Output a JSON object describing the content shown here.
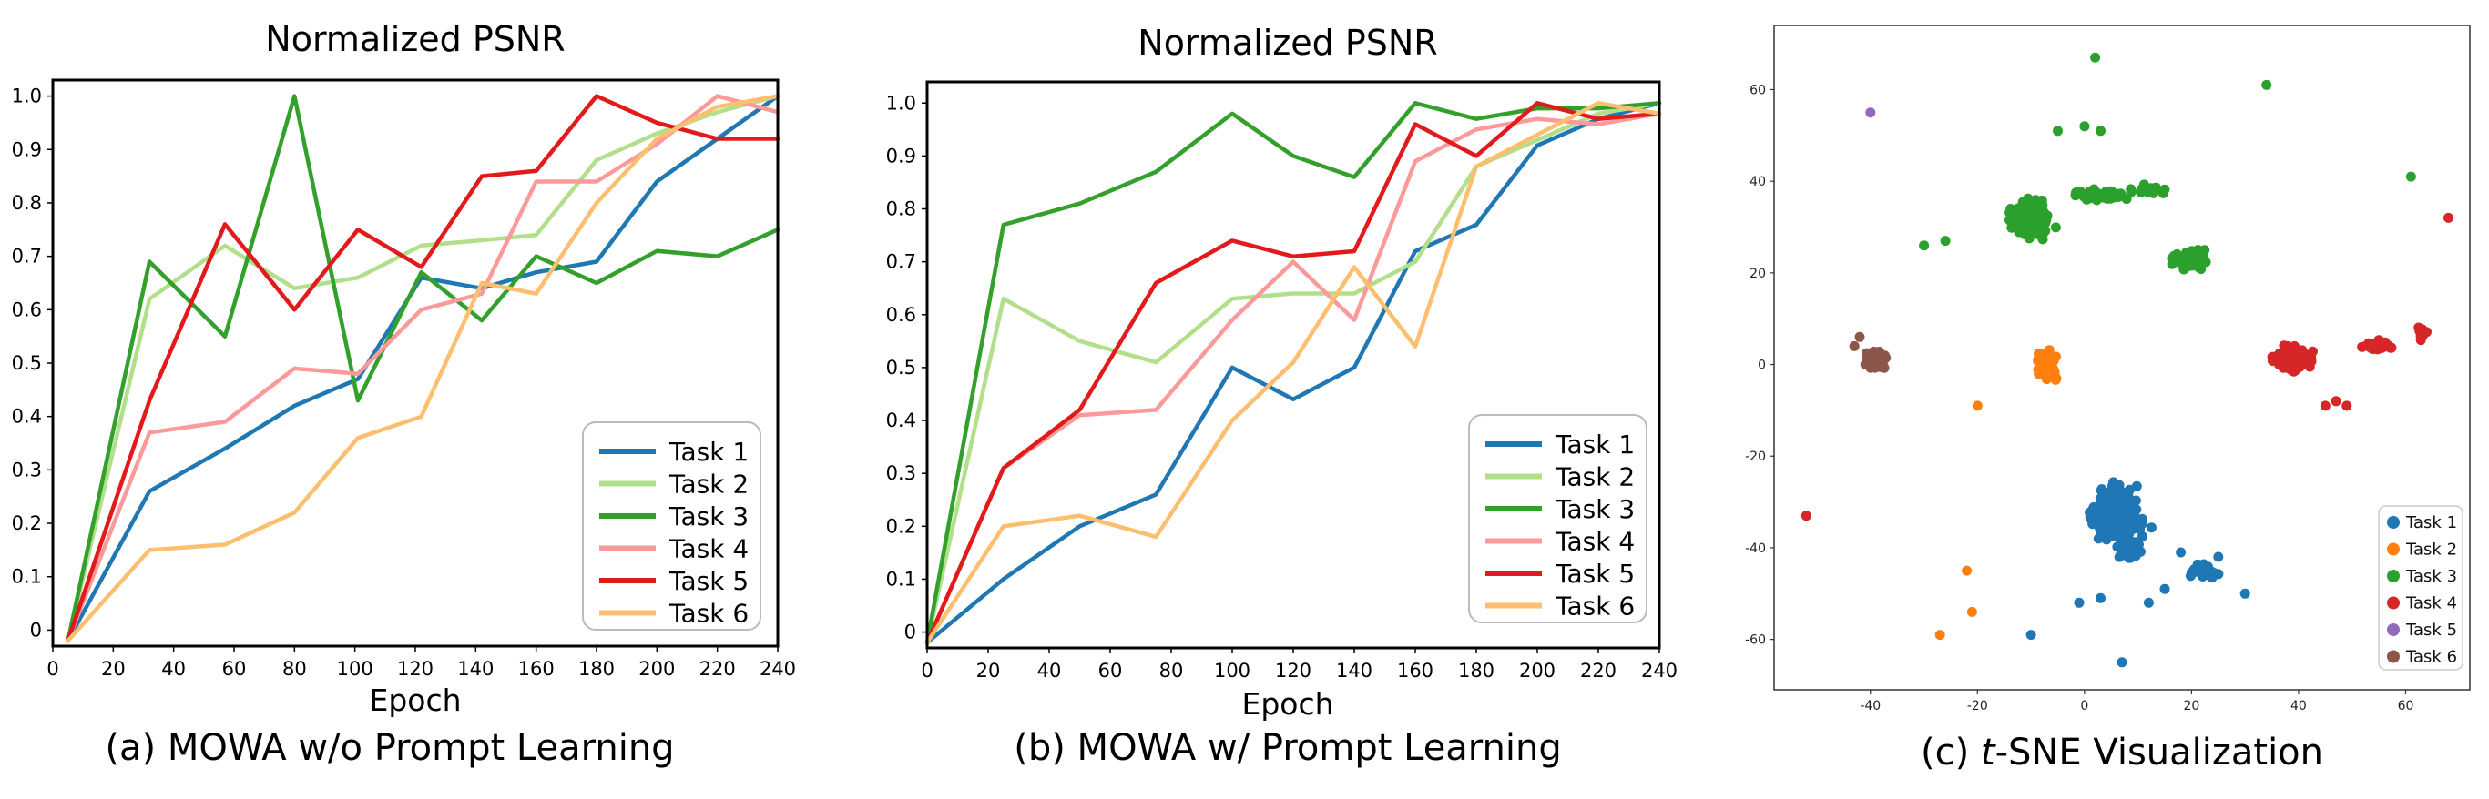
{
  "colors": {
    "task1": "#1f77b4",
    "task2": "#b2df8a",
    "task3": "#33a02c",
    "task4": "#fb9a99",
    "task5": "#e31a1c",
    "task6": "#fdbf6f",
    "tsne_task1": "#1f77b4",
    "tsne_task2": "#ff7f0e",
    "tsne_task3": "#2ca02c",
    "tsne_task4": "#d62728",
    "tsne_task5": "#9467bd",
    "tsne_task6": "#8c564b"
  },
  "chart_data": [
    {
      "type": "line",
      "title": "Normalized PSNR",
      "xlabel": "Epoch",
      "ylabel": "",
      "caption": "(a) MOWA w/o Prompt Learning",
      "xlim": [
        0,
        240
      ],
      "ylim": [
        -0.03,
        1.03
      ],
      "xticks": [
        "0",
        "20",
        "40",
        "60",
        "80",
        "100",
        "120",
        "140",
        "160",
        "180",
        "200",
        "220",
        "240"
      ],
      "yticks": [
        "0",
        "0.1",
        "0.2",
        "0.3",
        "0.4",
        "0.5",
        "0.6",
        "0.7",
        "0.8",
        "0.9",
        "1.0"
      ],
      "legend_position": "bottom-right",
      "x": [
        5,
        32,
        57,
        80,
        101,
        122,
        142,
        160,
        180,
        200,
        220,
        240
      ],
      "series": [
        {
          "name": "Task 1",
          "values": [
            -0.02,
            0.26,
            0.34,
            0.42,
            0.47,
            0.66,
            0.64,
            0.67,
            0.69,
            0.84,
            0.92,
            1.0
          ]
        },
        {
          "name": "Task 2",
          "values": [
            -0.02,
            0.62,
            0.72,
            0.64,
            0.66,
            0.72,
            0.73,
            0.74,
            0.88,
            0.93,
            0.97,
            1.0
          ]
        },
        {
          "name": "Task 3",
          "values": [
            -0.02,
            0.69,
            0.55,
            1.0,
            0.43,
            0.67,
            0.58,
            0.7,
            0.65,
            0.71,
            0.7,
            0.75
          ]
        },
        {
          "name": "Task 4",
          "values": [
            -0.02,
            0.37,
            0.39,
            0.49,
            0.48,
            0.6,
            0.63,
            0.84,
            0.84,
            0.91,
            1.0,
            0.97
          ]
        },
        {
          "name": "Task 5",
          "values": [
            -0.02,
            0.43,
            0.76,
            0.6,
            0.75,
            0.68,
            0.85,
            0.86,
            1.0,
            0.95,
            0.92,
            0.92
          ]
        },
        {
          "name": "Task 6",
          "values": [
            -0.02,
            0.15,
            0.16,
            0.22,
            0.36,
            0.4,
            0.65,
            0.63,
            0.8,
            0.92,
            0.98,
            1.0
          ]
        }
      ]
    },
    {
      "type": "line",
      "title": "Normalized PSNR",
      "xlabel": "Epoch",
      "ylabel": "",
      "caption": "(b) MOWA w/ Prompt Learning",
      "xlim": [
        0,
        240
      ],
      "ylim": [
        -0.03,
        1.04
      ],
      "xticks": [
        "0",
        "20",
        "40",
        "60",
        "80",
        "100",
        "120",
        "140",
        "160",
        "180",
        "200",
        "220",
        "240"
      ],
      "yticks": [
        "0",
        "0.1",
        "0.2",
        "0.3",
        "0.4",
        "0.5",
        "0.6",
        "0.7",
        "0.8",
        "0.9",
        "1.0"
      ],
      "legend_position": "bottom-right",
      "x": [
        0,
        25,
        50,
        75,
        100,
        120,
        140,
        160,
        180,
        200,
        220,
        240
      ],
      "series": [
        {
          "name": "Task 1",
          "values": [
            -0.02,
            0.1,
            0.2,
            0.26,
            0.5,
            0.44,
            0.5,
            0.72,
            0.77,
            0.92,
            0.97,
            1.0
          ]
        },
        {
          "name": "Task 2",
          "values": [
            -0.02,
            0.63,
            0.55,
            0.51,
            0.63,
            0.64,
            0.64,
            0.7,
            0.88,
            0.93,
            0.98,
            1.0
          ]
        },
        {
          "name": "Task 3",
          "values": [
            -0.02,
            0.77,
            0.81,
            0.87,
            0.98,
            0.9,
            0.86,
            1.0,
            0.97,
            0.99,
            0.99,
            1.0
          ]
        },
        {
          "name": "Task 4",
          "values": [
            -0.02,
            0.31,
            0.41,
            0.42,
            0.59,
            0.7,
            0.59,
            0.89,
            0.95,
            0.97,
            0.96,
            0.98
          ]
        },
        {
          "name": "Task 5",
          "values": [
            -0.02,
            0.31,
            0.42,
            0.66,
            0.74,
            0.71,
            0.72,
            0.96,
            0.9,
            1.0,
            0.97,
            0.98
          ]
        },
        {
          "name": "Task 6",
          "values": [
            -0.02,
            0.2,
            0.22,
            0.18,
            0.4,
            0.51,
            0.69,
            0.54,
            0.88,
            0.94,
            1.0,
            0.98
          ]
        }
      ]
    },
    {
      "type": "scatter",
      "title": "",
      "caption_prefix": "(c) ",
      "caption_italic": "t",
      "caption_suffix": "-SNE Visualization",
      "xlim": [
        -58,
        72
      ],
      "ylim": [
        -71,
        74
      ],
      "xticks": [
        "-40",
        "-20",
        "0",
        "20",
        "40",
        "60"
      ],
      "xtick_values": [
        -40,
        -20,
        0,
        20,
        40,
        60
      ],
      "yticks": [
        "-60",
        "-40",
        "-20",
        "0",
        "20",
        "40",
        "60"
      ],
      "ytick_values": [
        -60,
        -40,
        -20,
        0,
        20,
        40,
        60
      ],
      "legend_position": "bottom-right",
      "series": [
        {
          "name": "Task 1",
          "clusters": [
            [
              6,
              -33,
              8,
              9,
              240
            ],
            [
              8,
              -40,
              4,
              4,
              40
            ],
            [
              22,
              -45,
              4,
              2,
              40
            ]
          ],
          "points": [
            [
              -10,
              -59
            ],
            [
              7,
              -65
            ],
            [
              30,
              -50
            ],
            [
              -1,
              -52
            ],
            [
              3,
              -51
            ],
            [
              12,
              -52
            ],
            [
              15,
              -49
            ],
            [
              25,
              -42
            ],
            [
              18,
              -41
            ]
          ]
        },
        {
          "name": "Task 2",
          "clusters": [
            [
              -7,
              0,
              3,
              5,
              35
            ]
          ],
          "points": [
            [
              -20,
              -9
            ],
            [
              -22,
              -45
            ],
            [
              -21,
              -54
            ],
            [
              -27,
              -59
            ]
          ]
        },
        {
          "name": "Task 3",
          "clusters": [
            [
              -10,
              32,
              5,
              5,
              350
            ],
            [
              3,
              37,
              7,
              2,
              70
            ],
            [
              12,
              38,
              5,
              1.4,
              25
            ],
            [
              20,
              23,
              6,
              4,
              60
            ]
          ],
          "points": [
            [
              2,
              67
            ],
            [
              34,
              61
            ],
            [
              -5,
              51
            ],
            [
              3,
              51
            ],
            [
              0,
              52
            ],
            [
              61,
              41
            ],
            [
              -30,
              26
            ],
            [
              -26,
              27
            ]
          ]
        },
        {
          "name": "Task 4",
          "clusters": [
            [
              39,
              1,
              5,
              4,
              190
            ],
            [
              55,
              4,
              5,
              1.4,
              35
            ],
            [
              63,
              7,
              1.5,
              2,
              12
            ]
          ],
          "points": [
            [
              -52,
              -33
            ],
            [
              68,
              32
            ],
            [
              49,
              -9
            ],
            [
              47,
              -8
            ],
            [
              45,
              -9
            ]
          ]
        },
        {
          "name": "Task 5",
          "clusters": [],
          "points": [
            [
              -40,
              55
            ]
          ]
        },
        {
          "name": "Task 6",
          "clusters": [
            [
              -39,
              1,
              2.5,
              2.8,
              120
            ]
          ],
          "points": [
            [
              -43,
              4
            ],
            [
              -42,
              6
            ]
          ]
        }
      ]
    }
  ]
}
